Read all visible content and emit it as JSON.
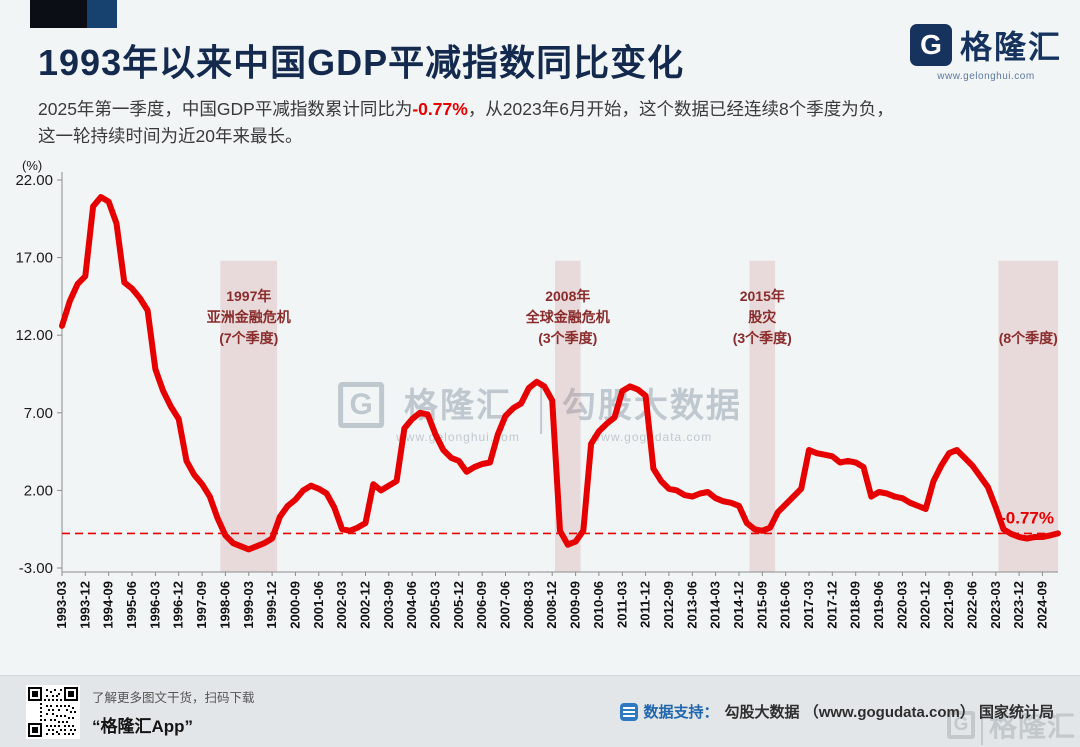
{
  "accent_colors": {
    "line_red": "#e60000",
    "title_navy": "#13294d",
    "band_pink": "rgba(197,122,122,0.22)",
    "annotation_red": "#8a2c2c"
  },
  "header": {
    "title": "1993年以来中国GDP平减指数同比变化",
    "subtitle_part1": "2025年第一季度，中国GDP平减指数累计同比为",
    "subtitle_highlight": "-0.77%",
    "subtitle_part2": "，从2023年6月开始，这个数据已经连续8个季度为负，",
    "subtitle_line2": "这一轮持续时间为近20年来最长。",
    "logo_letter": "G",
    "logo_text": "格隆汇",
    "logo_url": "www.gelonghui.com"
  },
  "chart_data": {
    "type": "line",
    "title": "1993年以来中国GDP平减指数同比变化",
    "ylabel": "(%)",
    "y_ticks": [
      22.0,
      17.0,
      12.0,
      7.0,
      2.0,
      -3.0
    ],
    "ylim": [
      -3.35,
      22
    ],
    "x_tick_every": 3,
    "x_quarters": [
      "1993-03",
      "1993-06",
      "1993-09",
      "1993-12",
      "1994-03",
      "1994-06",
      "1994-09",
      "1994-12",
      "1995-03",
      "1995-06",
      "1995-09",
      "1995-12",
      "1996-03",
      "1996-06",
      "1996-09",
      "1996-12",
      "1997-03",
      "1997-06",
      "1997-09",
      "1997-12",
      "1998-03",
      "1998-06",
      "1998-09",
      "1998-12",
      "1999-03",
      "1999-06",
      "1999-09",
      "1999-12",
      "2000-03",
      "2000-06",
      "2000-09",
      "2000-12",
      "2001-03",
      "2001-06",
      "2001-09",
      "2001-12",
      "2002-03",
      "2002-06",
      "2002-09",
      "2002-12",
      "2003-03",
      "2003-06",
      "2003-09",
      "2003-12",
      "2004-03",
      "2004-06",
      "2004-09",
      "2004-12",
      "2005-03",
      "2005-06",
      "2005-09",
      "2005-12",
      "2006-03",
      "2006-06",
      "2006-09",
      "2006-12",
      "2007-03",
      "2007-06",
      "2007-09",
      "2007-12",
      "2008-03",
      "2008-06",
      "2008-09",
      "2008-12",
      "2009-03",
      "2009-06",
      "2009-09",
      "2009-12",
      "2010-03",
      "2010-06",
      "2010-09",
      "2010-12",
      "2011-03",
      "2011-06",
      "2011-09",
      "2011-12",
      "2012-03",
      "2012-06",
      "2012-09",
      "2012-12",
      "2013-03",
      "2013-06",
      "2013-09",
      "2013-12",
      "2014-03",
      "2014-06",
      "2014-09",
      "2014-12",
      "2015-03",
      "2015-06",
      "2015-09",
      "2015-12",
      "2016-03",
      "2016-06",
      "2016-09",
      "2016-12",
      "2017-03",
      "2017-06",
      "2017-09",
      "2017-12",
      "2018-03",
      "2018-06",
      "2018-09",
      "2018-12",
      "2019-03",
      "2019-06",
      "2019-09",
      "2019-12",
      "2020-03",
      "2020-06",
      "2020-09",
      "2020-12",
      "2021-03",
      "2021-06",
      "2021-09",
      "2021-12",
      "2022-03",
      "2022-06",
      "2022-09",
      "2022-12",
      "2023-03",
      "2023-06",
      "2023-09",
      "2023-12",
      "2024-03",
      "2024-06",
      "2024-09",
      "2024-12",
      "2025-03"
    ],
    "values": [
      12.6,
      14.2,
      15.3,
      15.8,
      20.3,
      20.9,
      20.6,
      19.2,
      15.4,
      15.0,
      14.4,
      13.6,
      9.8,
      8.4,
      7.4,
      6.6,
      3.9,
      3.0,
      2.4,
      1.6,
      0.2,
      -0.9,
      -1.4,
      -1.6,
      -1.8,
      -1.6,
      -1.4,
      -1.1,
      0.3,
      1.0,
      1.4,
      2.0,
      2.3,
      2.1,
      1.8,
      0.9,
      -0.5,
      -0.6,
      -0.4,
      -0.1,
      2.4,
      2.0,
      2.3,
      2.6,
      6.0,
      6.6,
      7.0,
      6.9,
      5.6,
      4.6,
      4.1,
      3.9,
      3.2,
      3.5,
      3.7,
      3.8,
      5.6,
      6.8,
      7.3,
      7.6,
      8.6,
      9.0,
      8.7,
      7.8,
      -0.6,
      -1.5,
      -1.3,
      -0.6,
      5.0,
      5.8,
      6.3,
      6.7,
      8.4,
      8.7,
      8.5,
      8.1,
      3.4,
      2.6,
      2.1,
      2.0,
      1.7,
      1.6,
      1.8,
      1.9,
      1.5,
      1.3,
      1.2,
      1.0,
      -0.1,
      -0.5,
      -0.6,
      -0.4,
      0.6,
      1.1,
      1.6,
      2.1,
      4.6,
      4.4,
      4.3,
      4.2,
      3.8,
      3.9,
      3.8,
      3.5,
      1.6,
      1.9,
      1.8,
      1.6,
      1.5,
      1.2,
      1.0,
      0.8,
      2.6,
      3.6,
      4.4,
      4.6,
      4.1,
      3.6,
      2.9,
      2.2,
      0.9,
      -0.5,
      -0.8,
      -1.0,
      -1.1,
      -1.0,
      -1.0,
      -0.9,
      -0.77
    ],
    "reference_line": {
      "value": -0.77,
      "label": "-0.77%"
    },
    "bands": [
      {
        "from": "1998-06",
        "to": "1999-12",
        "label_lines": [
          "1997年",
          "亚洲金融危机",
          "(7个季度)"
        ]
      },
      {
        "from": "2009-03",
        "to": "2009-09",
        "label_lines": [
          "2008年",
          "全球金融危机",
          "(3个季度)"
        ]
      },
      {
        "from": "2015-06",
        "to": "2015-12",
        "label_lines": [
          "2015年",
          "股灾",
          "(3个季度)"
        ]
      },
      {
        "from": "2023-06",
        "to": "2025-03",
        "label_lines": [
          "(8个季度)"
        ]
      }
    ],
    "legend": [],
    "grid": false
  },
  "watermark": {
    "brand_letter": "G",
    "brand": "格隆汇",
    "brand_url": "www.gelonghui.com",
    "partner": "勾股大数据",
    "partner_url": "www.gogudata.com"
  },
  "footer": {
    "qr_caption": "了解更多图文干货，扫码下载",
    "app_name": "“格隆汇App”",
    "support_label": "数据支持：",
    "support_text": "勾股大数据 （www.gogudata.com） 国家统计局",
    "watermark_letter": "G",
    "watermark_brand": "格隆汇"
  }
}
